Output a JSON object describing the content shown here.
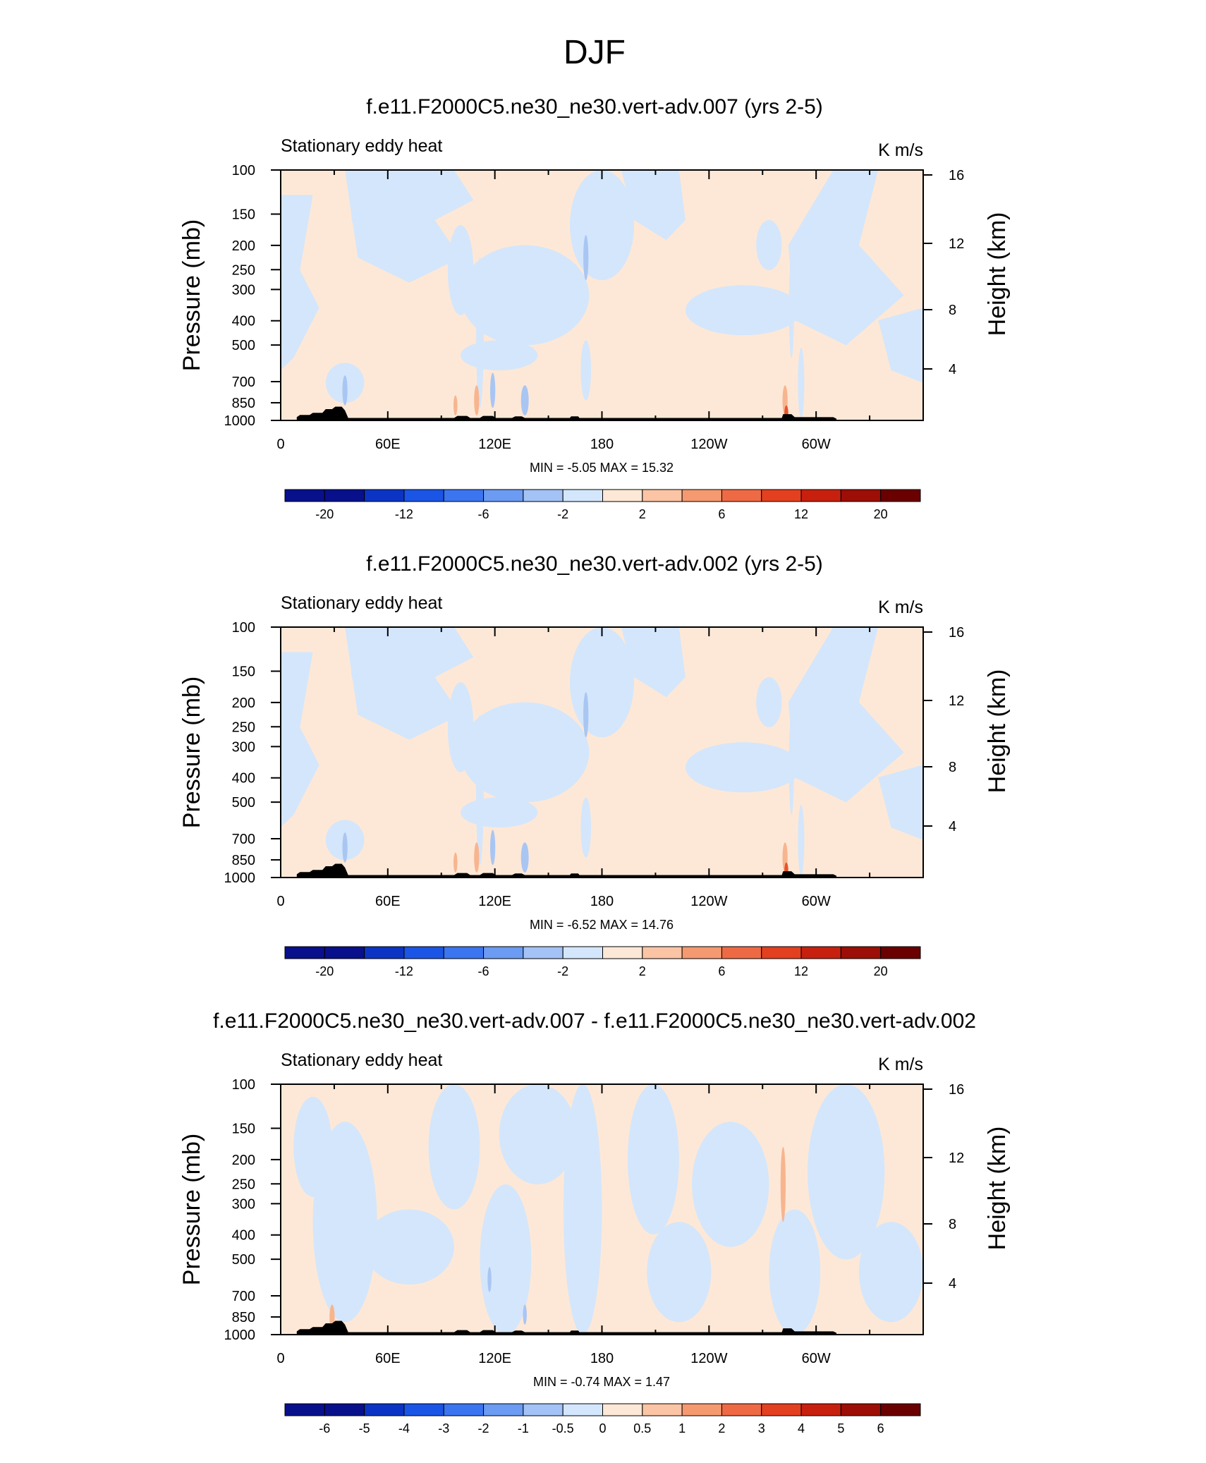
{
  "figure": {
    "title": "DJF"
  },
  "chart_data": [
    {
      "type": "contour",
      "title": "f.e11.F2000C5.ne30_ne30.vert-adv.007 (yrs 2-5)",
      "left_title": "Stationary eddy heat",
      "units": "K m/s",
      "ylabel": "Pressure (mb)",
      "ylabel_right": "Height (km)",
      "x_ticks": [
        "0",
        "60E",
        "120E",
        "180",
        "120W",
        "60W"
      ],
      "xlim": [
        0,
        360
      ],
      "y_ticks": [
        "100",
        "150",
        "200",
        "250",
        "300",
        "400",
        "500",
        "700",
        "850",
        "1000"
      ],
      "ylim": [
        1000,
        100
      ],
      "y_scale": "log",
      "y_right_ticks": [
        "16",
        "12",
        "8",
        "4"
      ],
      "stats": "MIN =  -5.05  MAX =  15.32",
      "colorbar_labels": [
        "-20",
        "-12",
        "-6",
        "-2",
        "2",
        "6",
        "12",
        "20"
      ]
    },
    {
      "type": "contour",
      "title": "f.e11.F2000C5.ne30_ne30.vert-adv.002 (yrs 2-5)",
      "left_title": "Stationary eddy heat",
      "units": "K m/s",
      "ylabel": "Pressure (mb)",
      "ylabel_right": "Height (km)",
      "x_ticks": [
        "0",
        "60E",
        "120E",
        "180",
        "120W",
        "60W"
      ],
      "xlim": [
        0,
        360
      ],
      "y_ticks": [
        "100",
        "150",
        "200",
        "250",
        "300",
        "400",
        "500",
        "700",
        "850",
        "1000"
      ],
      "ylim": [
        1000,
        100
      ],
      "y_scale": "log",
      "y_right_ticks": [
        "16",
        "12",
        "8",
        "4"
      ],
      "stats": "MIN =  -6.52  MAX =  14.76",
      "colorbar_labels": [
        "-20",
        "-12",
        "-6",
        "-2",
        "2",
        "6",
        "12",
        "20"
      ]
    },
    {
      "type": "contour",
      "title": "f.e11.F2000C5.ne30_ne30.vert-adv.007 - f.e11.F2000C5.ne30_ne30.vert-adv.002",
      "left_title": "Stationary eddy heat",
      "units": "K m/s",
      "ylabel": "Pressure (mb)",
      "ylabel_right": "Height (km)",
      "x_ticks": [
        "0",
        "60E",
        "120E",
        "180",
        "120W",
        "60W"
      ],
      "xlim": [
        0,
        360
      ],
      "y_ticks": [
        "100",
        "150",
        "200",
        "250",
        "300",
        "400",
        "500",
        "700",
        "850",
        "1000"
      ],
      "ylim": [
        1000,
        100
      ],
      "y_scale": "log",
      "y_right_ticks": [
        "16",
        "12",
        "8",
        "4"
      ],
      "stats": "MIN =  -0.74  MAX =   1.47",
      "colorbar_labels": [
        "-6",
        "-5",
        "-4",
        "-3",
        "-2",
        "-1",
        "-0.5",
        "0",
        "0.5",
        "1",
        "2",
        "3",
        "4",
        "5",
        "6"
      ]
    }
  ],
  "colors": {
    "pos_light": "#fde8d7",
    "neg_light": "#d4e6fb",
    "neg_mid": "#a9c6f3",
    "pos_mid": "#f7b58f",
    "pos_strong": "#e8532b",
    "topography": "#000000",
    "colorbar": [
      "#08108c",
      "#0c34c4",
      "#1a55e6",
      "#3b75f0",
      "#6b9bf2",
      "#a3c2f6",
      "#d4e6fb",
      "#fde8d7",
      "#fbc4a4",
      "#f59970",
      "#ee6a44",
      "#e3401f",
      "#c8200e",
      "#9c0e06",
      "#6a0000"
    ]
  }
}
